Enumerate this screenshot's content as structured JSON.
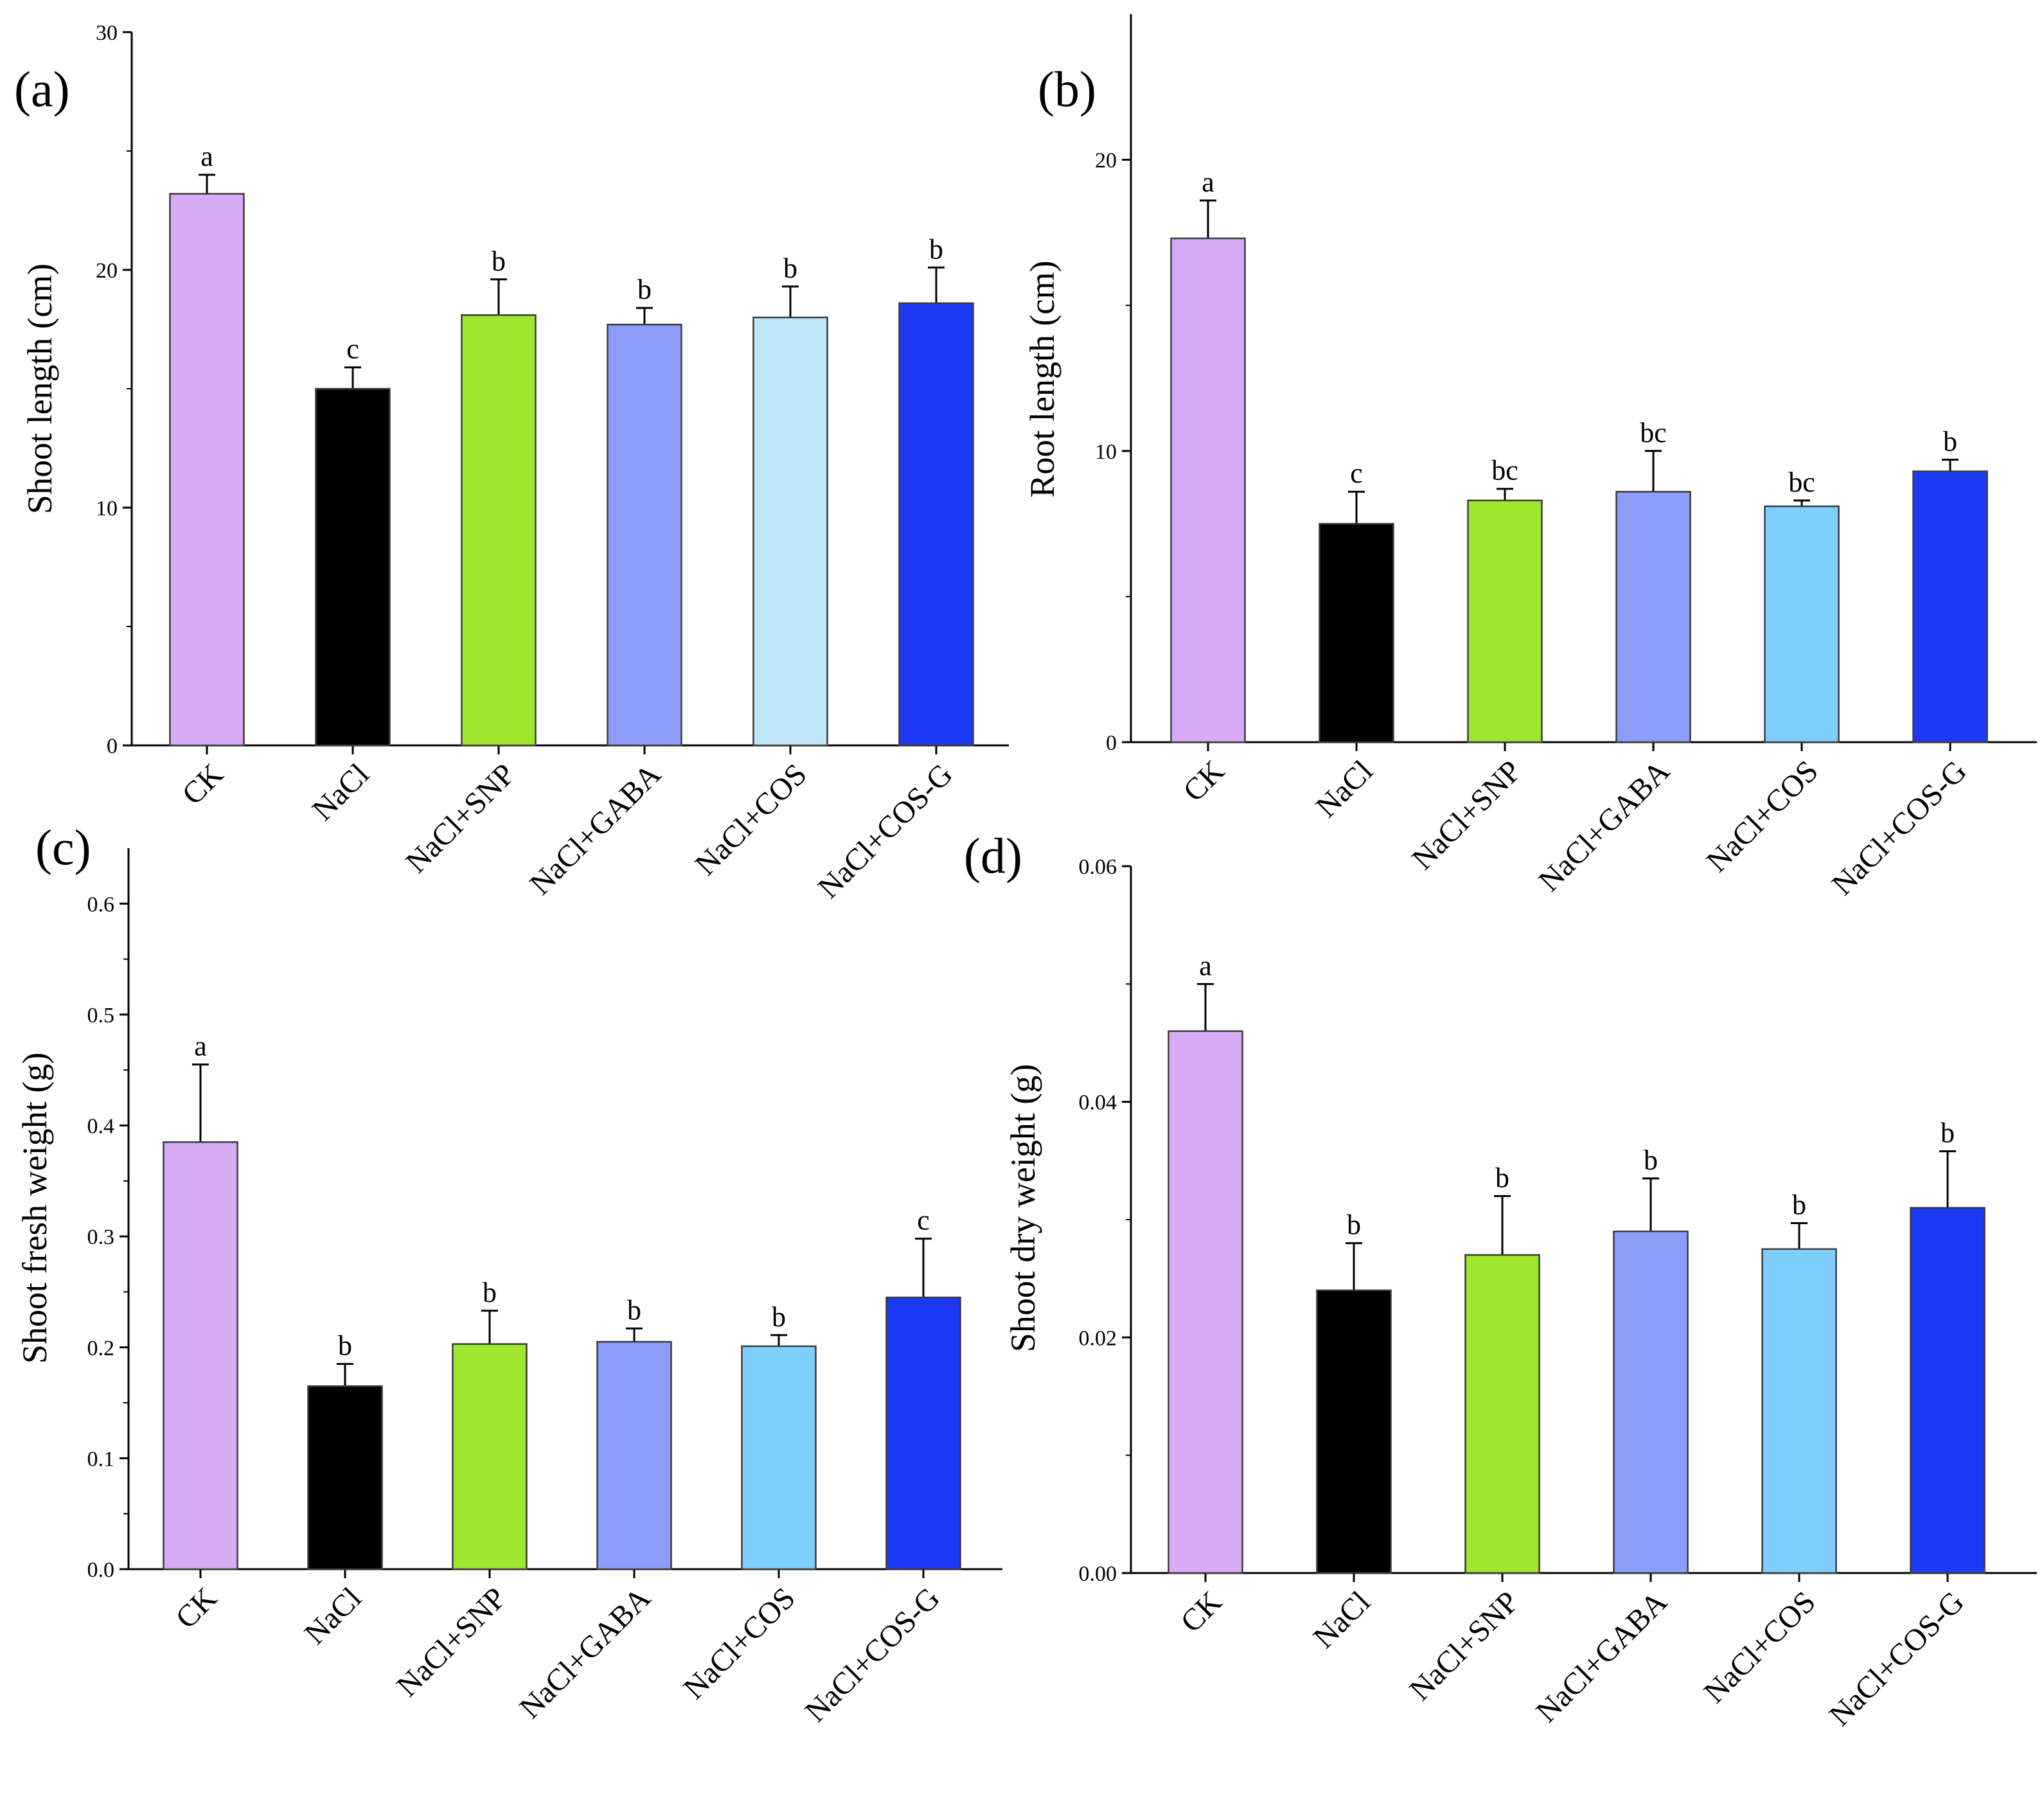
{
  "figure": {
    "panels": [
      {
        "id": "a",
        "tag": "(a)"
      },
      {
        "id": "b",
        "tag": "(b)"
      },
      {
        "id": "c",
        "tag": "(c)"
      },
      {
        "id": "d",
        "tag": "(d)"
      }
    ]
  },
  "chart_data": [
    {
      "type": "bar",
      "panel": "(a)",
      "ylabel": "Shoot length (cm)",
      "xlabel": "",
      "ylim": [
        0,
        30
      ],
      "yticks": [
        0,
        10,
        20,
        30
      ],
      "ytick_labels": [
        "0",
        "10",
        "20",
        "30"
      ],
      "categories": [
        "CK",
        "NaCl",
        "NaCl+SNP",
        "NaCl+GABA",
        "NaCl+COS",
        "NaCl+COS-G"
      ],
      "values": [
        23.2,
        15.0,
        18.1,
        17.7,
        18.0,
        18.6
      ],
      "errors": [
        0.8,
        0.9,
        1.5,
        0.7,
        1.3,
        1.5
      ],
      "significance": [
        "a",
        "c",
        "b",
        "b",
        "b",
        "b"
      ],
      "colors": [
        "#d8abf6",
        "#000000",
        "#9fe62e",
        "#8d9cf9",
        "#bfe6fb",
        "#1c3af6"
      ]
    },
    {
      "type": "bar",
      "panel": "(b)",
      "ylabel": "Root length (cm)",
      "xlabel": "",
      "ylim": [
        0,
        25
      ],
      "yticks": [
        0,
        10,
        20
      ],
      "ytick_labels": [
        "0",
        "10",
        "20"
      ],
      "categories": [
        "CK",
        "NaCl",
        "NaCl+SNP",
        "NaCl+GABA",
        "NaCl+COS",
        "NaCl+COS-G"
      ],
      "values": [
        17.3,
        7.5,
        8.3,
        8.6,
        8.1,
        9.3
      ],
      "errors": [
        1.3,
        1.1,
        0.4,
        1.4,
        0.2,
        0.4
      ],
      "significance": [
        "a",
        "c",
        "bc",
        "bc",
        "bc",
        "b"
      ],
      "colors": [
        "#d8abf6",
        "#000000",
        "#9fe62e",
        "#8d9cf9",
        "#7fcffd",
        "#1c3af6"
      ]
    },
    {
      "type": "bar",
      "panel": "(c)",
      "ylabel": "Shoot fresh weight (g)",
      "xlabel": "",
      "ylim": [
        0,
        0.65
      ],
      "yticks": [
        0.0,
        0.1,
        0.2,
        0.3,
        0.4,
        0.5,
        0.6
      ],
      "ytick_labels": [
        "0.0",
        "0.1",
        "0.2",
        "0.3",
        "0.4",
        "0.5",
        "0.6"
      ],
      "categories": [
        "CK",
        "NaCl",
        "NaCl+SNP",
        "NaCl+GABA",
        "NaCl+COS",
        "NaCl+COS-G"
      ],
      "values": [
        0.385,
        0.165,
        0.203,
        0.205,
        0.201,
        0.245
      ],
      "errors": [
        0.07,
        0.02,
        0.03,
        0.012,
        0.01,
        0.053
      ],
      "significance": [
        "a",
        "b",
        "b",
        "b",
        "b",
        "c"
      ],
      "colors": [
        "#d8abf6",
        "#000000",
        "#9fe62e",
        "#8d9cf9",
        "#7fcffd",
        "#1c3af6"
      ]
    },
    {
      "type": "bar",
      "panel": "(d)",
      "ylabel": "Shoot dry weight (g)",
      "xlabel": "",
      "ylim": [
        0,
        0.06
      ],
      "yticks": [
        0.0,
        0.02,
        0.04,
        0.06
      ],
      "ytick_labels": [
        "0.00",
        "0.02",
        "0.04",
        "0.06"
      ],
      "categories": [
        "CK",
        "NaCl",
        "NaCl+SNP",
        "NaCl+GABA",
        "NaCl+COS",
        "NaCl+COS-G"
      ],
      "values": [
        0.046,
        0.024,
        0.027,
        0.029,
        0.0275,
        0.031
      ],
      "errors": [
        0.004,
        0.004,
        0.005,
        0.0045,
        0.0022,
        0.0048
      ],
      "significance": [
        "a",
        "b",
        "b",
        "b",
        "b",
        "b"
      ],
      "colors": [
        "#d8abf6",
        "#000000",
        "#9fe62e",
        "#8d9cf9",
        "#7fcffd",
        "#1c3af6"
      ]
    }
  ]
}
